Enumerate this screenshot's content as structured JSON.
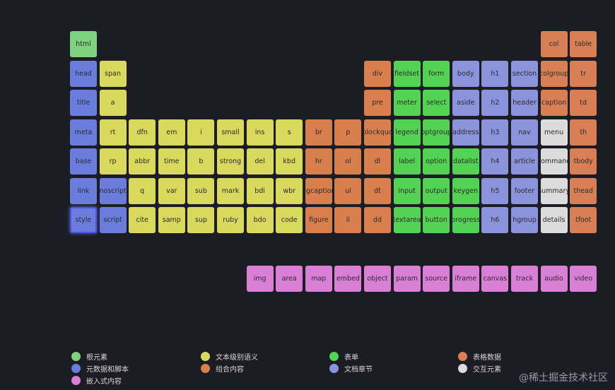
{
  "colors": {
    "root": "#7fd27f",
    "metadata": "#6a7ddc",
    "embedded": "#d97fd6",
    "text": "#d9d95e",
    "grouping": "#d97f4e",
    "forms": "#54d254",
    "sections": "#8c93dd",
    "tabular": "#d97f55",
    "interactive": "#dcdcdc"
  },
  "elements": [
    {
      "label": "html",
      "row": 0,
      "col": 0,
      "cat": "root"
    },
    {
      "label": "col",
      "row": 0,
      "col": 16,
      "cat": "tabular"
    },
    {
      "label": "table",
      "row": 0,
      "col": 17,
      "cat": "tabular"
    },
    {
      "label": "head",
      "row": 1,
      "col": 0,
      "cat": "metadata"
    },
    {
      "label": "span",
      "row": 1,
      "col": 1,
      "cat": "text"
    },
    {
      "label": "div",
      "row": 1,
      "col": 10,
      "cat": "grouping"
    },
    {
      "label": "fieldset",
      "row": 1,
      "col": 11,
      "cat": "forms"
    },
    {
      "label": "form",
      "row": 1,
      "col": 12,
      "cat": "forms"
    },
    {
      "label": "body",
      "row": 1,
      "col": 13,
      "cat": "sections"
    },
    {
      "label": "h1",
      "row": 1,
      "col": 14,
      "cat": "sections"
    },
    {
      "label": "section",
      "row": 1,
      "col": 15,
      "cat": "sections"
    },
    {
      "label": "colgroup",
      "row": 1,
      "col": 16,
      "cat": "tabular"
    },
    {
      "label": "tr",
      "row": 1,
      "col": 17,
      "cat": "tabular"
    },
    {
      "label": "title",
      "row": 2,
      "col": 0,
      "cat": "metadata"
    },
    {
      "label": "a",
      "row": 2,
      "col": 1,
      "cat": "text"
    },
    {
      "label": "pre",
      "row": 2,
      "col": 10,
      "cat": "grouping"
    },
    {
      "label": "meter",
      "row": 2,
      "col": 11,
      "cat": "forms"
    },
    {
      "label": "select",
      "row": 2,
      "col": 12,
      "cat": "forms"
    },
    {
      "label": "aside",
      "row": 2,
      "col": 13,
      "cat": "sections"
    },
    {
      "label": "h2",
      "row": 2,
      "col": 14,
      "cat": "sections"
    },
    {
      "label": "header",
      "row": 2,
      "col": 15,
      "cat": "sections"
    },
    {
      "label": "caption",
      "row": 2,
      "col": 16,
      "cat": "tabular"
    },
    {
      "label": "td",
      "row": 2,
      "col": 17,
      "cat": "tabular"
    },
    {
      "label": "meta",
      "row": 3,
      "col": 0,
      "cat": "metadata"
    },
    {
      "label": "rt",
      "row": 3,
      "col": 1,
      "cat": "text"
    },
    {
      "label": "dfn",
      "row": 3,
      "col": 2,
      "cat": "text"
    },
    {
      "label": "em",
      "row": 3,
      "col": 3,
      "cat": "text"
    },
    {
      "label": "i",
      "row": 3,
      "col": 4,
      "cat": "text"
    },
    {
      "label": "small",
      "row": 3,
      "col": 5,
      "cat": "text"
    },
    {
      "label": "ins",
      "row": 3,
      "col": 6,
      "cat": "text"
    },
    {
      "label": "s",
      "row": 3,
      "col": 7,
      "cat": "text"
    },
    {
      "label": "br",
      "row": 3,
      "col": 8,
      "cat": "grouping"
    },
    {
      "label": "p",
      "row": 3,
      "col": 9,
      "cat": "grouping"
    },
    {
      "label": "blockquo",
      "row": 3,
      "col": 10,
      "cat": "grouping"
    },
    {
      "label": "legend",
      "row": 3,
      "col": 11,
      "cat": "forms"
    },
    {
      "label": "optgroup",
      "row": 3,
      "col": 12,
      "cat": "forms"
    },
    {
      "label": "address",
      "row": 3,
      "col": 13,
      "cat": "sections"
    },
    {
      "label": "h3",
      "row": 3,
      "col": 14,
      "cat": "sections"
    },
    {
      "label": "nav",
      "row": 3,
      "col": 15,
      "cat": "sections"
    },
    {
      "label": "menu",
      "row": 3,
      "col": 16,
      "cat": "interactive"
    },
    {
      "label": "th",
      "row": 3,
      "col": 17,
      "cat": "tabular"
    },
    {
      "label": "base",
      "row": 4,
      "col": 0,
      "cat": "metadata"
    },
    {
      "label": "rp",
      "row": 4,
      "col": 1,
      "cat": "text"
    },
    {
      "label": "abbr",
      "row": 4,
      "col": 2,
      "cat": "text"
    },
    {
      "label": "time",
      "row": 4,
      "col": 3,
      "cat": "text"
    },
    {
      "label": "b",
      "row": 4,
      "col": 4,
      "cat": "text"
    },
    {
      "label": "strong",
      "row": 4,
      "col": 5,
      "cat": "text"
    },
    {
      "label": "del",
      "row": 4,
      "col": 6,
      "cat": "text"
    },
    {
      "label": "kbd",
      "row": 4,
      "col": 7,
      "cat": "text"
    },
    {
      "label": "hr",
      "row": 4,
      "col": 8,
      "cat": "grouping"
    },
    {
      "label": "ol",
      "row": 4,
      "col": 9,
      "cat": "grouping"
    },
    {
      "label": "dl",
      "row": 4,
      "col": 10,
      "cat": "grouping"
    },
    {
      "label": "label",
      "row": 4,
      "col": 11,
      "cat": "forms"
    },
    {
      "label": "option",
      "row": 4,
      "col": 12,
      "cat": "forms"
    },
    {
      "label": "datalist",
      "row": 4,
      "col": 13,
      "cat": "forms"
    },
    {
      "label": "h4",
      "row": 4,
      "col": 14,
      "cat": "sections"
    },
    {
      "label": "article",
      "row": 4,
      "col": 15,
      "cat": "sections"
    },
    {
      "label": "command",
      "row": 4,
      "col": 16,
      "cat": "interactive"
    },
    {
      "label": "tbody",
      "row": 4,
      "col": 17,
      "cat": "tabular"
    },
    {
      "label": "link",
      "row": 5,
      "col": 0,
      "cat": "metadata"
    },
    {
      "label": "noscript",
      "row": 5,
      "col": 1,
      "cat": "metadata"
    },
    {
      "label": "q",
      "row": 5,
      "col": 2,
      "cat": "text"
    },
    {
      "label": "var",
      "row": 5,
      "col": 3,
      "cat": "text"
    },
    {
      "label": "sub",
      "row": 5,
      "col": 4,
      "cat": "text"
    },
    {
      "label": "mark",
      "row": 5,
      "col": 5,
      "cat": "text"
    },
    {
      "label": "bdi",
      "row": 5,
      "col": 6,
      "cat": "text"
    },
    {
      "label": "wbr",
      "row": 5,
      "col": 7,
      "cat": "text"
    },
    {
      "label": "figcaption",
      "row": 5,
      "col": 8,
      "cat": "grouping"
    },
    {
      "label": "ul",
      "row": 5,
      "col": 9,
      "cat": "grouping"
    },
    {
      "label": "dt",
      "row": 5,
      "col": 10,
      "cat": "grouping"
    },
    {
      "label": "input",
      "row": 5,
      "col": 11,
      "cat": "forms"
    },
    {
      "label": "output",
      "row": 5,
      "col": 12,
      "cat": "forms"
    },
    {
      "label": "keygen",
      "row": 5,
      "col": 13,
      "cat": "forms"
    },
    {
      "label": "h5",
      "row": 5,
      "col": 14,
      "cat": "sections"
    },
    {
      "label": "footer",
      "row": 5,
      "col": 15,
      "cat": "sections"
    },
    {
      "label": "summary",
      "row": 5,
      "col": 16,
      "cat": "interactive"
    },
    {
      "label": "thead",
      "row": 5,
      "col": 17,
      "cat": "tabular"
    },
    {
      "label": "style",
      "row": 6,
      "col": 0,
      "cat": "metadata",
      "selected": true
    },
    {
      "label": "script",
      "row": 6,
      "col": 1,
      "cat": "metadata"
    },
    {
      "label": "cite",
      "row": 6,
      "col": 2,
      "cat": "text"
    },
    {
      "label": "samp",
      "row": 6,
      "col": 3,
      "cat": "text"
    },
    {
      "label": "sup",
      "row": 6,
      "col": 4,
      "cat": "text"
    },
    {
      "label": "ruby",
      "row": 6,
      "col": 5,
      "cat": "text"
    },
    {
      "label": "bdo",
      "row": 6,
      "col": 6,
      "cat": "text"
    },
    {
      "label": "code",
      "row": 6,
      "col": 7,
      "cat": "text"
    },
    {
      "label": "figure",
      "row": 6,
      "col": 8,
      "cat": "grouping"
    },
    {
      "label": "li",
      "row": 6,
      "col": 9,
      "cat": "grouping"
    },
    {
      "label": "dd",
      "row": 6,
      "col": 10,
      "cat": "grouping"
    },
    {
      "label": "textarea",
      "row": 6,
      "col": 11,
      "cat": "forms"
    },
    {
      "label": "button",
      "row": 6,
      "col": 12,
      "cat": "forms"
    },
    {
      "label": "progress",
      "row": 6,
      "col": 13,
      "cat": "forms"
    },
    {
      "label": "h6",
      "row": 6,
      "col": 14,
      "cat": "sections"
    },
    {
      "label": "hgroup",
      "row": 6,
      "col": 15,
      "cat": "sections"
    },
    {
      "label": "details",
      "row": 6,
      "col": 16,
      "cat": "interactive"
    },
    {
      "label": "tfoot",
      "row": 6,
      "col": 17,
      "cat": "tabular"
    },
    {
      "label": "img",
      "row": 8,
      "col": 6,
      "cat": "embedded"
    },
    {
      "label": "area",
      "row": 8,
      "col": 7,
      "cat": "embedded"
    },
    {
      "label": "map",
      "row": 8,
      "col": 8,
      "cat": "embedded"
    },
    {
      "label": "embed",
      "row": 8,
      "col": 9,
      "cat": "embedded"
    },
    {
      "label": "object",
      "row": 8,
      "col": 10,
      "cat": "embedded"
    },
    {
      "label": "param",
      "row": 8,
      "col": 11,
      "cat": "embedded"
    },
    {
      "label": "source",
      "row": 8,
      "col": 12,
      "cat": "embedded"
    },
    {
      "label": "iframe",
      "row": 8,
      "col": 13,
      "cat": "embedded"
    },
    {
      "label": "canvas",
      "row": 8,
      "col": 14,
      "cat": "embedded"
    },
    {
      "label": "track",
      "row": 8,
      "col": 15,
      "cat": "embedded"
    },
    {
      "label": "audio",
      "row": 8,
      "col": 16,
      "cat": "embedded"
    },
    {
      "label": "video",
      "row": 8,
      "col": 17,
      "cat": "embedded"
    }
  ],
  "legend": [
    {
      "label": "根元素",
      "cat": "root",
      "row": 0,
      "col": 0
    },
    {
      "label": "文本级别语义",
      "cat": "text",
      "row": 0,
      "col": 1
    },
    {
      "label": "表单",
      "cat": "forms",
      "row": 0,
      "col": 2
    },
    {
      "label": "表格数据",
      "cat": "tabular",
      "row": 0,
      "col": 3
    },
    {
      "label": "元数据和脚本",
      "cat": "metadata",
      "row": 1,
      "col": 0
    },
    {
      "label": "组合内容",
      "cat": "grouping",
      "row": 1,
      "col": 1
    },
    {
      "label": "文档章节",
      "cat": "sections",
      "row": 1,
      "col": 2
    },
    {
      "label": "交互元素",
      "cat": "interactive",
      "row": 1,
      "col": 3
    },
    {
      "label": "嵌入式内容",
      "cat": "embedded",
      "row": 2,
      "col": 0
    }
  ],
  "watermark": "@稀土掘金技术社区"
}
